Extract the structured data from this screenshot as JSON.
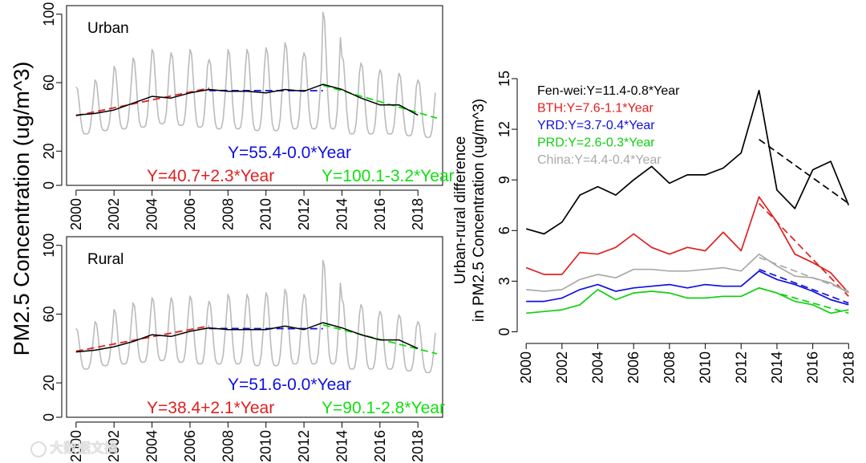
{
  "shared_ylabel": "PM2.5 Concentration (ug/m^3)",
  "watermark": "大数据文摘",
  "chart_data": [
    {
      "id": "urban",
      "type": "line",
      "panel_label": "Urban",
      "xlim": [
        1999.5,
        2019.3
      ],
      "ylim": [
        0,
        105
      ],
      "x_ticks": [
        2000,
        2002,
        2004,
        2006,
        2008,
        2010,
        2012,
        2014,
        2016,
        2018
      ],
      "y_ticks": [
        0,
        20,
        60,
        100
      ],
      "monthly_series": {
        "name": "monthly",
        "color": "#bbbbbb",
        "start": 2000.0,
        "monthly_peak": [
          58,
          62,
          70,
          75,
          80,
          78,
          80,
          74,
          80,
          80,
          81,
          84,
          78,
          102,
          76,
          72,
          68,
          66,
          62
        ],
        "monthly_trough": [
          30,
          32,
          33,
          34,
          36,
          35,
          34,
          33,
          33,
          32,
          32,
          33,
          33,
          33,
          30,
          30,
          30,
          29,
          28
        ]
      },
      "annual_series": {
        "name": "annual mean",
        "color": "#000000",
        "x": [
          2000,
          2001,
          2002,
          2003,
          2004,
          2005,
          2006,
          2007,
          2008,
          2009,
          2010,
          2011,
          2012,
          2013,
          2014,
          2015,
          2016,
          2017,
          2018
        ],
        "values": [
          41,
          42,
          44,
          48,
          52,
          51,
          54,
          56,
          55,
          55,
          54,
          56,
          55,
          59,
          56,
          51,
          47,
          47,
          41
        ]
      },
      "trends": [
        {
          "label": "Y=40.7+2.3*Year",
          "color": "#e02020",
          "x": [
            2000,
            2007
          ],
          "y": [
            40.7,
            56.8
          ]
        },
        {
          "label": "Y=55.4-0.0*Year",
          "color": "#1010e0",
          "x": [
            2007,
            2013
          ],
          "y": [
            55.4,
            55.3
          ]
        },
        {
          "label": "Y=100.1-3.2*Year",
          "color": "#10e010",
          "x": [
            2013,
            2019
          ],
          "y": [
            58.5,
            39.3
          ]
        }
      ]
    },
    {
      "id": "rural",
      "type": "line",
      "panel_label": "Rural",
      "xlim": [
        1999.5,
        2019.3
      ],
      "ylim": [
        0,
        105
      ],
      "x_ticks": [
        2000,
        2002,
        2004,
        2006,
        2008,
        2010,
        2012,
        2014,
        2016,
        2018
      ],
      "y_ticks": [
        0,
        20,
        60,
        100
      ],
      "monthly_series": {
        "name": "monthly",
        "color": "#bbbbbb",
        "start": 2000.0,
        "monthly_peak": [
          52,
          56,
          63,
          67,
          70,
          70,
          71,
          68,
          72,
          72,
          73,
          75,
          72,
          92,
          69,
          66,
          62,
          60,
          56
        ],
        "monthly_trough": [
          28,
          30,
          31,
          32,
          33,
          32,
          31,
          31,
          31,
          30,
          30,
          31,
          31,
          31,
          28,
          28,
          28,
          27,
          26
        ]
      },
      "annual_series": {
        "name": "annual mean",
        "color": "#000000",
        "x": [
          2000,
          2001,
          2002,
          2003,
          2004,
          2005,
          2006,
          2007,
          2008,
          2009,
          2010,
          2011,
          2012,
          2013,
          2014,
          2015,
          2016,
          2017,
          2018
        ],
        "values": [
          38,
          39,
          41,
          44,
          48,
          47,
          50,
          52,
          51,
          51,
          51,
          53,
          51,
          55,
          52,
          48,
          45,
          45,
          40
        ]
      },
      "trends": [
        {
          "label": "Y=38.4+2.1*Year",
          "color": "#e02020",
          "x": [
            2000,
            2007
          ],
          "y": [
            38.4,
            53.1
          ]
        },
        {
          "label": "Y=51.6-0.0*Year",
          "color": "#1010e0",
          "x": [
            2007,
            2013
          ],
          "y": [
            51.6,
            51.5
          ]
        },
        {
          "label": "Y=90.1-2.8*Year",
          "color": "#10e010",
          "x": [
            2013,
            2019
          ],
          "y": [
            53.7,
            36.9
          ]
        }
      ]
    },
    {
      "id": "diff",
      "type": "line",
      "ylabel_line1": "Urban-rural difference",
      "ylabel_line2": "in PM2.5 Concentration (ug/m^3)",
      "xlim": [
        1999.5,
        2018.3
      ],
      "ylim": [
        -0.5,
        15
      ],
      "x_ticks": [
        2000,
        2002,
        2004,
        2006,
        2008,
        2010,
        2012,
        2014,
        2016,
        2018
      ],
      "y_ticks": [
        0,
        3,
        6,
        9,
        12,
        15
      ],
      "x": [
        2000,
        2001,
        2002,
        2003,
        2004,
        2005,
        2006,
        2007,
        2008,
        2009,
        2010,
        2011,
        2012,
        2013,
        2014,
        2015,
        2016,
        2017,
        2018
      ],
      "series": [
        {
          "name": "Fen-wei",
          "legend": "Fen-wei:Y=11.4-0.8*Year",
          "color": "#000000",
          "values": [
            6.1,
            5.8,
            6.5,
            8.1,
            8.6,
            8.1,
            9.0,
            9.8,
            8.8,
            9.3,
            9.3,
            9.7,
            10.6,
            14.3,
            8.4,
            7.3,
            9.6,
            10.1,
            7.5
          ],
          "trend": {
            "x": [
              2013,
              2018
            ],
            "y": [
              11.4,
              7.6
            ]
          }
        },
        {
          "name": "BTH",
          "legend": "BTH:Y=7.6-1.1*Year",
          "color": "#e02020",
          "values": [
            3.8,
            3.4,
            3.4,
            4.7,
            4.6,
            5.0,
            5.8,
            5.0,
            4.6,
            5.0,
            4.8,
            5.9,
            4.8,
            8.0,
            6.5,
            4.6,
            4.1,
            3.5,
            2.3
          ],
          "trend": {
            "x": [
              2013,
              2018
            ],
            "y": [
              7.6,
              2.1
            ]
          }
        },
        {
          "name": "YRD",
          "legend": "YRD:Y=3.7-0.4*Year",
          "color": "#1010e0",
          "values": [
            1.8,
            1.8,
            2.0,
            2.5,
            2.8,
            2.4,
            2.6,
            2.7,
            2.8,
            2.6,
            2.8,
            2.7,
            2.7,
            3.6,
            3.1,
            2.8,
            2.4,
            1.9,
            1.6
          ],
          "trend": {
            "x": [
              2013,
              2018
            ],
            "y": [
              3.7,
              1.7
            ]
          }
        },
        {
          "name": "PRD",
          "legend": "PRD:Y=2.6-0.3*Year",
          "color": "#10d010",
          "values": [
            1.1,
            1.2,
            1.3,
            1.6,
            2.5,
            1.9,
            2.3,
            2.4,
            2.3,
            2.0,
            2.0,
            2.1,
            2.1,
            2.6,
            2.3,
            1.8,
            1.6,
            1.1,
            1.3
          ],
          "trend": {
            "x": [
              2013,
              2018
            ],
            "y": [
              2.6,
              1.1
            ]
          }
        },
        {
          "name": "China",
          "legend": "China:Y=4.4-0.4*Year",
          "color": "#aaaaaa",
          "values": [
            2.5,
            2.4,
            2.5,
            3.1,
            3.4,
            3.2,
            3.7,
            3.7,
            3.6,
            3.6,
            3.7,
            3.8,
            3.6,
            4.6,
            3.9,
            3.3,
            3.2,
            2.9,
            2.3
          ],
          "trend": {
            "x": [
              2013,
              2018
            ],
            "y": [
              4.4,
              2.4
            ]
          }
        }
      ]
    }
  ]
}
